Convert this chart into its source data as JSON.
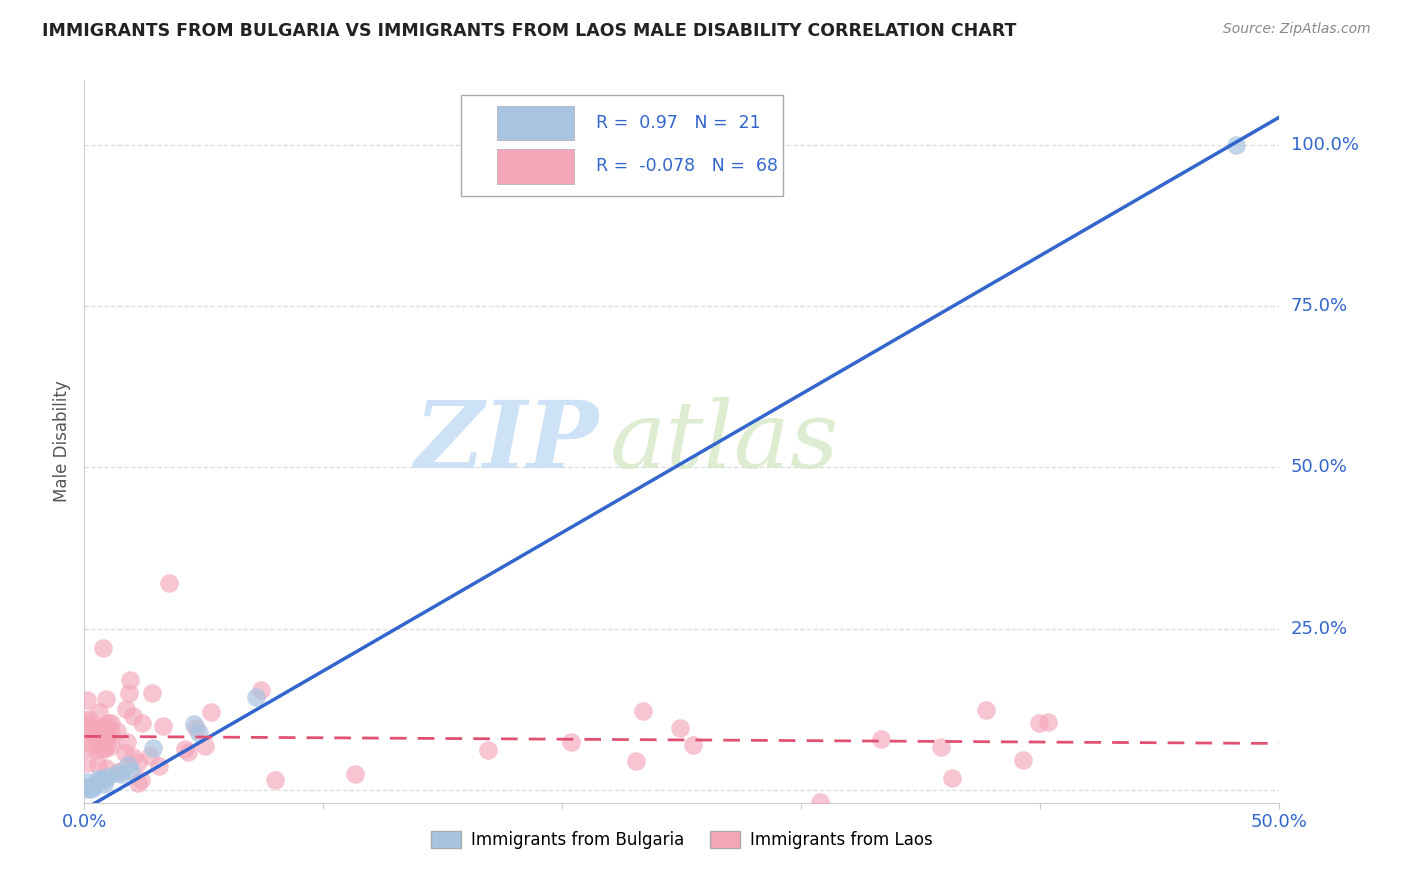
{
  "title": "IMMIGRANTS FROM BULGARIA VS IMMIGRANTS FROM LAOS MALE DISABILITY CORRELATION CHART",
  "source": "Source: ZipAtlas.com",
  "ylabel": "Male Disability",
  "xlim": [
    0.0,
    0.5
  ],
  "ylim": [
    -0.02,
    1.1
  ],
  "yticks": [
    0.0,
    0.25,
    0.5,
    0.75,
    1.0
  ],
  "ytick_labels": [
    "",
    "25.0%",
    "50.0%",
    "75.0%",
    "100.0%"
  ],
  "xticks": [
    0.0,
    0.1,
    0.2,
    0.3,
    0.4,
    0.5
  ],
  "xtick_labels": [
    "0.0%",
    "",
    "",
    "",
    "",
    "50.0%"
  ],
  "bulgaria_color": "#a8c4e0",
  "laos_color": "#f4a7b9",
  "bulgaria_edge_color": "#6699cc",
  "laos_edge_color": "#e080a0",
  "bulgaria_line_color": "#3366cc",
  "laos_line_color": "#e05070",
  "bulgaria_R": 0.97,
  "bulgaria_N": 21,
  "laos_R": -0.078,
  "laos_N": 68,
  "legend_R_color": "#3366cc",
  "legend_label1": "Immigrants from Bulgaria",
  "legend_label2": "Immigrants from Laos",
  "watermark_zip": "ZIP",
  "watermark_atlas": "atlas",
  "background_color": "#ffffff",
  "grid_color": "#cccccc",
  "title_color": "#222222",
  "source_color": "#888888",
  "tick_color": "#3366cc",
  "ylabel_color": "#555555"
}
